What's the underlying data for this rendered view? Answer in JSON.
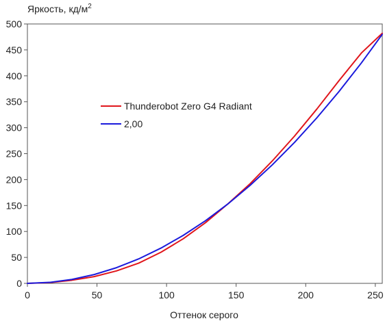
{
  "chart_data": {
    "type": "line",
    "ylabel": "Яркость, кд/м",
    "ylabel_sup": "2",
    "xlabel": "Оттенок серого",
    "xlim": [
      0,
      255
    ],
    "ylim": [
      0,
      500
    ],
    "x_ticks": [
      0,
      50,
      100,
      150,
      200,
      250
    ],
    "y_ticks": [
      0,
      50,
      100,
      150,
      200,
      250,
      300,
      350,
      400,
      450,
      500
    ],
    "legend_position": "center-left",
    "series": [
      {
        "name": "Thunderobot Zero G4 Radiant",
        "color": "#e0151b",
        "x": [
          0,
          16,
          32,
          48,
          64,
          80,
          96,
          112,
          128,
          144,
          160,
          176,
          192,
          208,
          224,
          240,
          255
        ],
        "y": [
          0,
          1.5,
          6,
          13,
          24,
          39,
          60,
          86,
          117,
          153,
          192,
          236,
          284,
          336,
          391,
          444,
          482
        ]
      },
      {
        "name": "2,00",
        "color": "#1a1adc",
        "x": [
          0,
          16,
          32,
          48,
          64,
          80,
          96,
          112,
          128,
          144,
          160,
          176,
          192,
          208,
          224,
          240,
          255
        ],
        "y": [
          0,
          1.9,
          7.6,
          17.0,
          30.2,
          47.2,
          68.0,
          92.5,
          120.8,
          152.9,
          188.8,
          228.5,
          271.9,
          319.1,
          370.1,
          424.9,
          480
        ]
      }
    ]
  }
}
